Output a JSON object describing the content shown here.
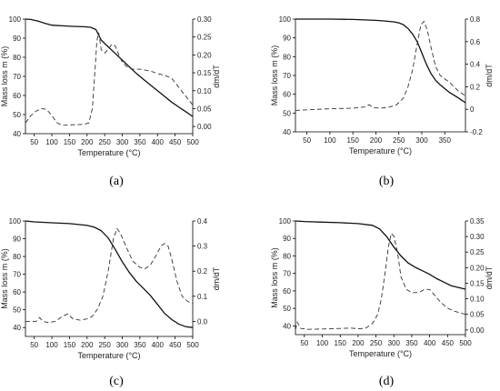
{
  "panel_labels": [
    "(a)",
    "(b)",
    "(c)",
    "(d)"
  ],
  "chart_data": [
    {
      "type": "line",
      "xlabel": "Temperature (°C)",
      "ylabel_left": "Mass loss m (%)",
      "ylabel_right": "dm/dT",
      "xlim": [
        25,
        500
      ],
      "xticks": [
        50,
        100,
        150,
        200,
        250,
        300,
        350,
        400,
        450,
        500
      ],
      "ylim_left": [
        40,
        100
      ],
      "yticks_left": [
        40,
        50,
        60,
        70,
        80,
        90,
        100
      ],
      "ylim_right": [
        -0.02,
        0.3
      ],
      "yticks_right": [
        "0.00",
        "0.05",
        "0.10",
        "0.15",
        "0.20",
        "0.25",
        "0.30"
      ],
      "series": [
        {
          "axis": "left",
          "style": "solid",
          "x": [
            25,
            40,
            60,
            80,
            100,
            130,
            160,
            190,
            210,
            225,
            240,
            260,
            280,
            300,
            320,
            340,
            360,
            380,
            400,
            420,
            440,
            460,
            480,
            500
          ],
          "y": [
            100,
            99.8,
            99,
            97.8,
            96.8,
            96.5,
            96.2,
            96,
            95.7,
            94.5,
            89,
            85.5,
            82,
            78.5,
            75,
            71.5,
            68.5,
            65.5,
            62.5,
            59.5,
            56.5,
            54,
            51.5,
            49
          ]
        },
        {
          "axis": "right",
          "style": "dashed",
          "x": [
            25,
            40,
            55,
            70,
            85,
            100,
            115,
            130,
            160,
            190,
            205,
            215,
            222,
            228,
            233,
            240,
            250,
            260,
            270,
            280,
            290,
            300,
            315,
            330,
            350,
            380,
            400,
            420,
            440,
            460,
            480,
            500
          ],
          "y": [
            0.01,
            0.03,
            0.043,
            0.05,
            0.048,
            0.03,
            0.01,
            0.003,
            0.005,
            0.006,
            0.01,
            0.05,
            0.15,
            0.24,
            0.262,
            0.215,
            0.205,
            0.215,
            0.23,
            0.225,
            0.2,
            0.18,
            0.165,
            0.16,
            0.16,
            0.155,
            0.148,
            0.143,
            0.135,
            0.11,
            0.085,
            0.06
          ]
        }
      ]
    },
    {
      "type": "line",
      "xlabel": "Temperature (°C)",
      "ylabel_left": "Mass loss m (%)",
      "ylabel_right": "dm/dT",
      "xlim": [
        25,
        395
      ],
      "xticks": [
        50,
        100,
        150,
        200,
        250,
        300,
        350
      ],
      "ylim_left": [
        40,
        100
      ],
      "yticks_left": [
        40,
        50,
        60,
        70,
        80,
        90,
        100
      ],
      "ylim_right": [
        -0.2,
        0.8
      ],
      "yticks_right": [
        "-0.2",
        "0",
        "0.2",
        "0.4",
        "0.6",
        "0.8"
      ],
      "series": [
        {
          "axis": "left",
          "style": "solid",
          "x": [
            25,
            50,
            100,
            150,
            200,
            220,
            240,
            250,
            260,
            270,
            280,
            290,
            300,
            310,
            320,
            330,
            340,
            350,
            360,
            370,
            380,
            395
          ],
          "y": [
            100,
            100,
            100,
            99.8,
            99.3,
            99,
            98.5,
            98,
            97,
            95,
            92,
            88,
            82,
            76,
            71,
            67.5,
            65,
            63,
            61,
            59.5,
            58,
            55.5
          ]
        },
        {
          "axis": "right",
          "style": "dashed",
          "x": [
            25,
            50,
            100,
            150,
            175,
            185,
            195,
            210,
            230,
            245,
            260,
            270,
            280,
            290,
            298,
            305,
            312,
            320,
            330,
            340,
            350,
            360,
            370,
            380,
            395
          ],
          "y": [
            -0.01,
            -0.005,
            0.005,
            0.01,
            0.02,
            0.04,
            0.015,
            0.01,
            0.02,
            0.04,
            0.1,
            0.2,
            0.35,
            0.58,
            0.75,
            0.78,
            0.7,
            0.55,
            0.38,
            0.3,
            0.27,
            0.24,
            0.2,
            0.16,
            0.12
          ]
        }
      ]
    },
    {
      "type": "line",
      "xlabel": "Temperature (°C)",
      "ylabel_left": "Mass loss m (%)",
      "ylabel_right": "dm/dT",
      "xlim": [
        25,
        500
      ],
      "xticks": [
        50,
        100,
        150,
        200,
        250,
        300,
        350,
        400,
        450,
        500
      ],
      "ylim_left": [
        35,
        100
      ],
      "yticks_left": [
        40,
        50,
        60,
        70,
        80,
        90,
        100
      ],
      "ylim_right": [
        -0.06,
        0.4
      ],
      "yticks_right": [
        "0.0",
        "0.1",
        "0.2",
        "0.3",
        "0.4"
      ],
      "series": [
        {
          "axis": "left",
          "style": "solid",
          "x": [
            25,
            50,
            100,
            150,
            200,
            220,
            240,
            260,
            280,
            300,
            320,
            340,
            360,
            380,
            400,
            420,
            440,
            460,
            480,
            500
          ],
          "y": [
            100,
            99.5,
            99,
            98.5,
            97.5,
            96.5,
            94.5,
            90.5,
            84,
            77,
            71,
            66,
            62,
            58,
            53,
            48,
            44.5,
            42,
            40.5,
            40
          ]
        },
        {
          "axis": "right",
          "style": "dashed",
          "x": [
            25,
            40,
            55,
            65,
            75,
            90,
            110,
            130,
            145,
            160,
            180,
            200,
            215,
            230,
            245,
            260,
            275,
            285,
            295,
            310,
            330,
            350,
            365,
            380,
            395,
            410,
            420,
            430,
            440,
            455,
            470,
            485,
            500
          ],
          "y": [
            0.0,
            0.0,
            0.0,
            0.015,
            0.0,
            -0.005,
            0.0,
            0.02,
            0.03,
            0.01,
            0.005,
            0.01,
            0.02,
            0.05,
            0.1,
            0.2,
            0.33,
            0.37,
            0.35,
            0.3,
            0.24,
            0.215,
            0.21,
            0.225,
            0.26,
            0.3,
            0.31,
            0.3,
            0.25,
            0.16,
            0.1,
            0.08,
            0.07
          ]
        }
      ]
    },
    {
      "type": "line",
      "xlabel": "Temperature (°C)",
      "ylabel_left": "Mass loss m (%)",
      "ylabel_right": "dm/dT",
      "xlim": [
        25,
        500
      ],
      "xticks": [
        50,
        100,
        150,
        200,
        250,
        300,
        350,
        400,
        450,
        500
      ],
      "ylim_left": [
        35,
        100
      ],
      "yticks_left": [
        40,
        50,
        60,
        70,
        80,
        90,
        100
      ],
      "ylim_right": [
        -0.015,
        0.35
      ],
      "yticks_right": [
        "0.00",
        "0.05",
        "0.10",
        "0.15",
        "0.20",
        "0.25",
        "0.30",
        "0.35"
      ],
      "series": [
        {
          "axis": "left",
          "style": "solid",
          "x": [
            25,
            50,
            100,
            150,
            200,
            240,
            260,
            280,
            300,
            320,
            340,
            360,
            380,
            400,
            420,
            440,
            460,
            480,
            500
          ],
          "y": [
            100,
            99.7,
            99.3,
            99,
            98.5,
            97.5,
            95.5,
            91,
            85,
            80,
            76,
            73.5,
            71.5,
            69.5,
            67,
            65,
            63,
            62,
            61
          ]
        },
        {
          "axis": "right",
          "style": "dashed",
          "x": [
            25,
            30,
            40,
            60,
            100,
            150,
            180,
            200,
            220,
            240,
            255,
            265,
            275,
            285,
            293,
            300,
            310,
            320,
            335,
            350,
            370,
            385,
            400,
            415,
            430,
            450,
            470,
            500
          ],
          "y": [
            0.0,
            0.025,
            0.005,
            0.002,
            0.003,
            0.005,
            0.006,
            0.004,
            0.005,
            0.02,
            0.05,
            0.1,
            0.18,
            0.27,
            0.31,
            0.3,
            0.25,
            0.17,
            0.13,
            0.12,
            0.12,
            0.13,
            0.13,
            0.11,
            0.09,
            0.07,
            0.06,
            0.05
          ]
        }
      ]
    }
  ]
}
